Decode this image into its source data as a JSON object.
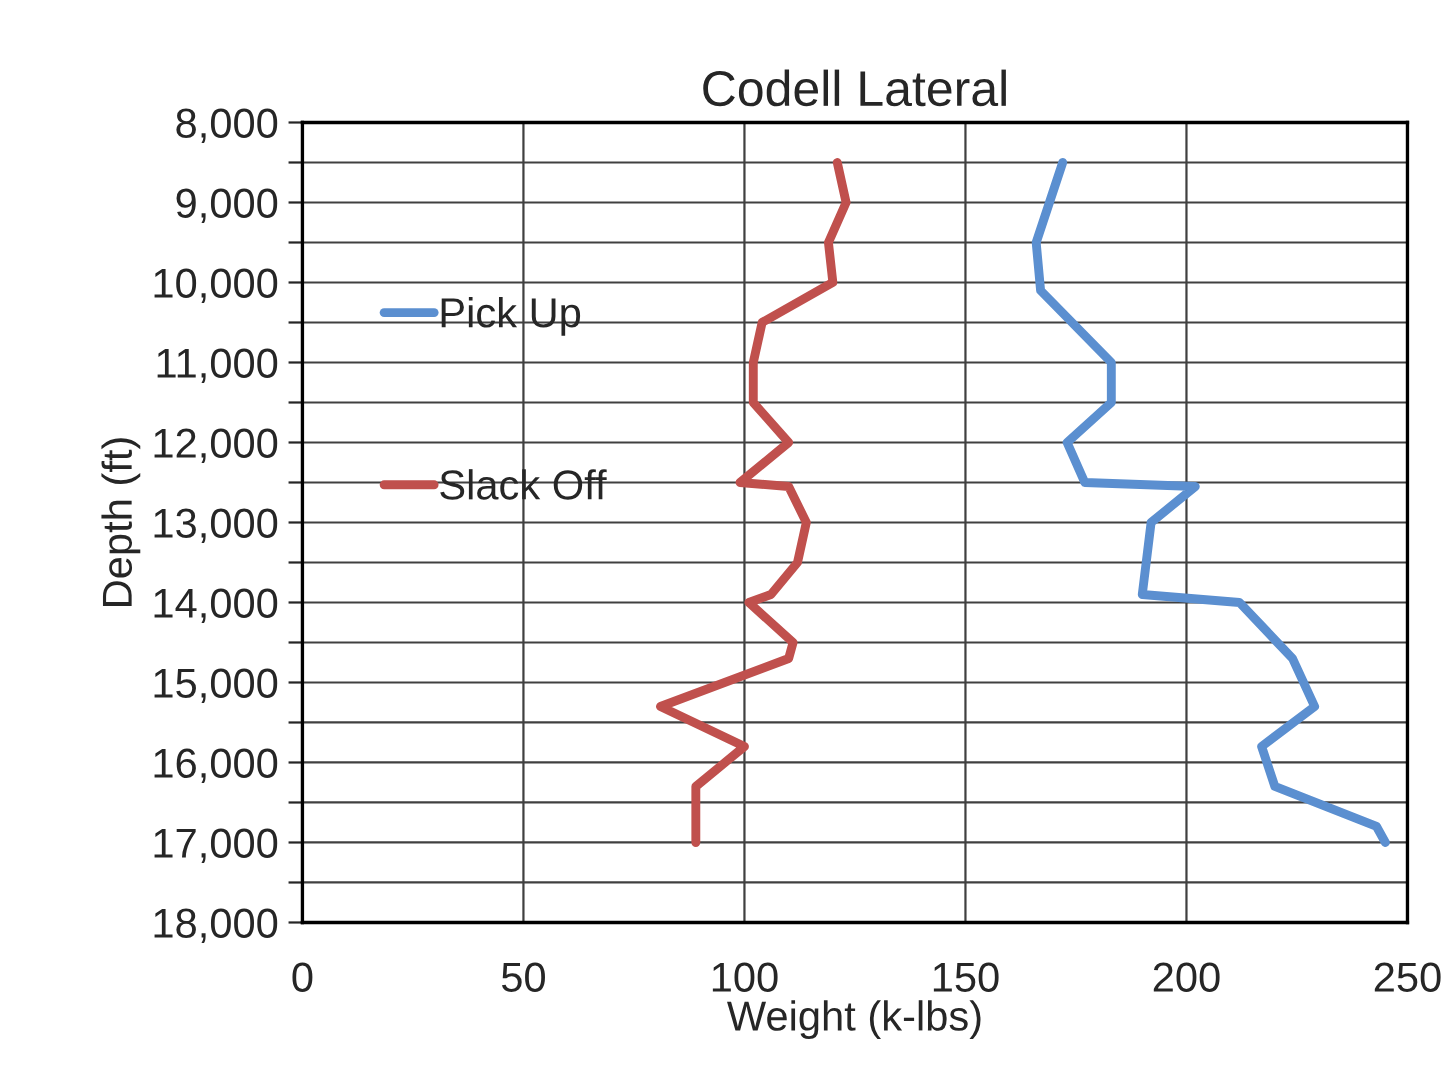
{
  "chart_data": {
    "type": "line",
    "title": "Codell Lateral",
    "xlabel": "Weight (k-lbs)",
    "ylabel": "Depth (ft)",
    "series": [
      {
        "name": "Pick Up",
        "color": "#5b8fd0",
        "x": [
          172,
          169,
          166,
          167,
          183,
          183,
          173,
          177,
          202,
          192,
          190,
          212,
          224,
          229,
          217,
          220,
          243,
          245
        ],
        "values": [
          8500,
          9000,
          9500,
          10100,
          11000,
          11500,
          12000,
          12500,
          12550,
          13000,
          13900,
          14000,
          14700,
          15300,
          15800,
          16300,
          16800,
          17000
        ]
      },
      {
        "name": "Slack Off",
        "color": "#c0504d",
        "x": [
          121,
          123,
          119,
          120,
          104,
          102,
          102,
          110,
          99,
          110,
          114,
          112,
          106,
          101,
          111,
          110,
          81,
          100,
          89,
          89
        ],
        "values": [
          8500,
          9000,
          9500,
          10000,
          10500,
          11000,
          11500,
          12000,
          12500,
          12550,
          13000,
          13500,
          13900,
          14000,
          14500,
          14700,
          15300,
          15800,
          16300,
          17000
        ]
      }
    ],
    "xlim": [
      0,
      250
    ],
    "xticks": [
      0,
      50,
      100,
      150,
      200,
      250
    ],
    "ylim": [
      18000,
      8000
    ],
    "yticks": [
      {
        "value": 8000,
        "label": "8,000"
      },
      {
        "value": 8500,
        "label": null
      },
      {
        "value": 9000,
        "label": "9,000"
      },
      {
        "value": 9500,
        "label": null
      },
      {
        "value": 10000,
        "label": "10,000"
      },
      {
        "value": 10500,
        "label": null
      },
      {
        "value": 11000,
        "label": "11,000"
      },
      {
        "value": 11500,
        "label": null
      },
      {
        "value": 12000,
        "label": "12,000"
      },
      {
        "value": 12500,
        "label": null
      },
      {
        "value": 13000,
        "label": "13,000"
      },
      {
        "value": 13500,
        "label": null
      },
      {
        "value": 14000,
        "label": "14,000"
      },
      {
        "value": 14500,
        "label": null
      },
      {
        "value": 15000,
        "label": "15,000"
      },
      {
        "value": 15500,
        "label": null
      },
      {
        "value": 16000,
        "label": "16,000"
      },
      {
        "value": 16500,
        "label": null
      },
      {
        "value": 17000,
        "label": "17,000"
      },
      {
        "value": 17500,
        "label": null
      },
      {
        "value": 18000,
        "label": "18,000"
      }
    ],
    "grid": true,
    "legend": "center left",
    "marker": "none",
    "line_style": "solid"
  }
}
